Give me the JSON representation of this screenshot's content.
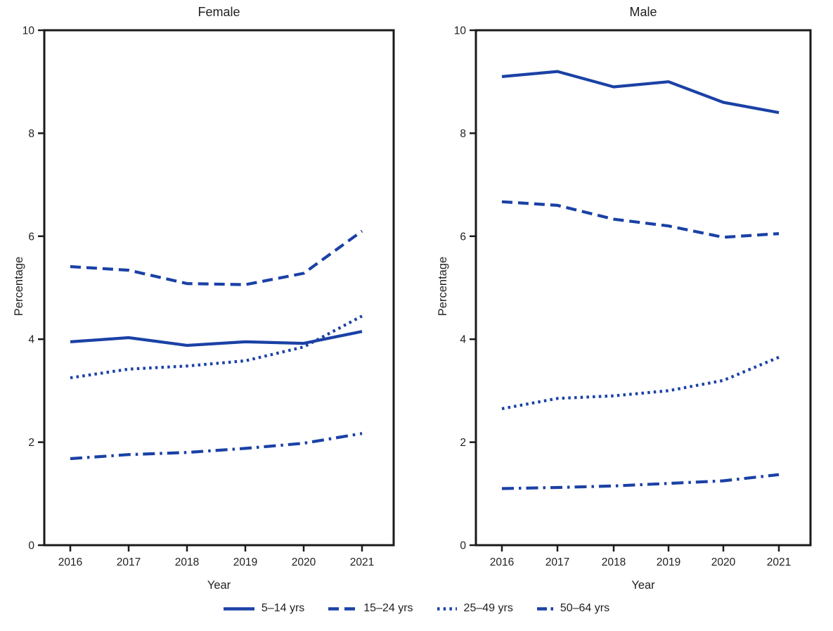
{
  "figure": {
    "colors": {
      "line": "#1a41a5",
      "axis": "#1a1a1a",
      "text": "#1f1f1f",
      "background": "#ffffff"
    },
    "legend": [
      {
        "label": "5–14 yrs",
        "style": "solid"
      },
      {
        "label": "15–24 yrs",
        "style": "dashed"
      },
      {
        "label": "25–49 yrs",
        "style": "dotted"
      },
      {
        "label": "50–64 yrs",
        "style": "dashdot"
      }
    ]
  },
  "chart_data": [
    {
      "type": "line",
      "title": "Female",
      "xlabel": "Year",
      "ylabel": "Percentage",
      "x": [
        2016,
        2017,
        2018,
        2019,
        2020,
        2021
      ],
      "ylim": [
        0,
        10
      ],
      "yticks": [
        0,
        2,
        4,
        6,
        8,
        10
      ],
      "grid": false,
      "legend_position": "bottom",
      "series": [
        {
          "name": "5–14 yrs",
          "style": "solid",
          "values": [
            3.95,
            4.03,
            3.88,
            3.95,
            3.92,
            4.15
          ]
        },
        {
          "name": "15–24 yrs",
          "style": "dashed",
          "values": [
            5.41,
            5.34,
            5.08,
            5.06,
            5.28,
            6.1
          ]
        },
        {
          "name": "25–49 yrs",
          "style": "dotted",
          "values": [
            3.25,
            3.42,
            3.48,
            3.58,
            3.85,
            4.45
          ]
        },
        {
          "name": "50–64 yrs",
          "style": "dashdot",
          "values": [
            1.68,
            1.76,
            1.8,
            1.88,
            1.98,
            2.17
          ]
        }
      ]
    },
    {
      "type": "line",
      "title": "Male",
      "xlabel": "Year",
      "ylabel": "Percentage",
      "x": [
        2016,
        2017,
        2018,
        2019,
        2020,
        2021
      ],
      "ylim": [
        0,
        10
      ],
      "yticks": [
        0,
        2,
        4,
        6,
        8,
        10
      ],
      "grid": false,
      "legend_position": "bottom",
      "series": [
        {
          "name": "5–14 yrs",
          "style": "solid",
          "values": [
            9.1,
            9.2,
            8.9,
            9.0,
            8.6,
            8.4
          ]
        },
        {
          "name": "15–24 yrs",
          "style": "dashed",
          "values": [
            6.67,
            6.6,
            6.33,
            6.2,
            5.98,
            6.05
          ]
        },
        {
          "name": "25–49 yrs",
          "style": "dotted",
          "values": [
            2.65,
            2.85,
            2.9,
            3.0,
            3.2,
            3.65
          ]
        },
        {
          "name": "50–64 yrs",
          "style": "dashdot",
          "values": [
            1.1,
            1.12,
            1.15,
            1.2,
            1.25,
            1.37
          ]
        }
      ]
    }
  ]
}
